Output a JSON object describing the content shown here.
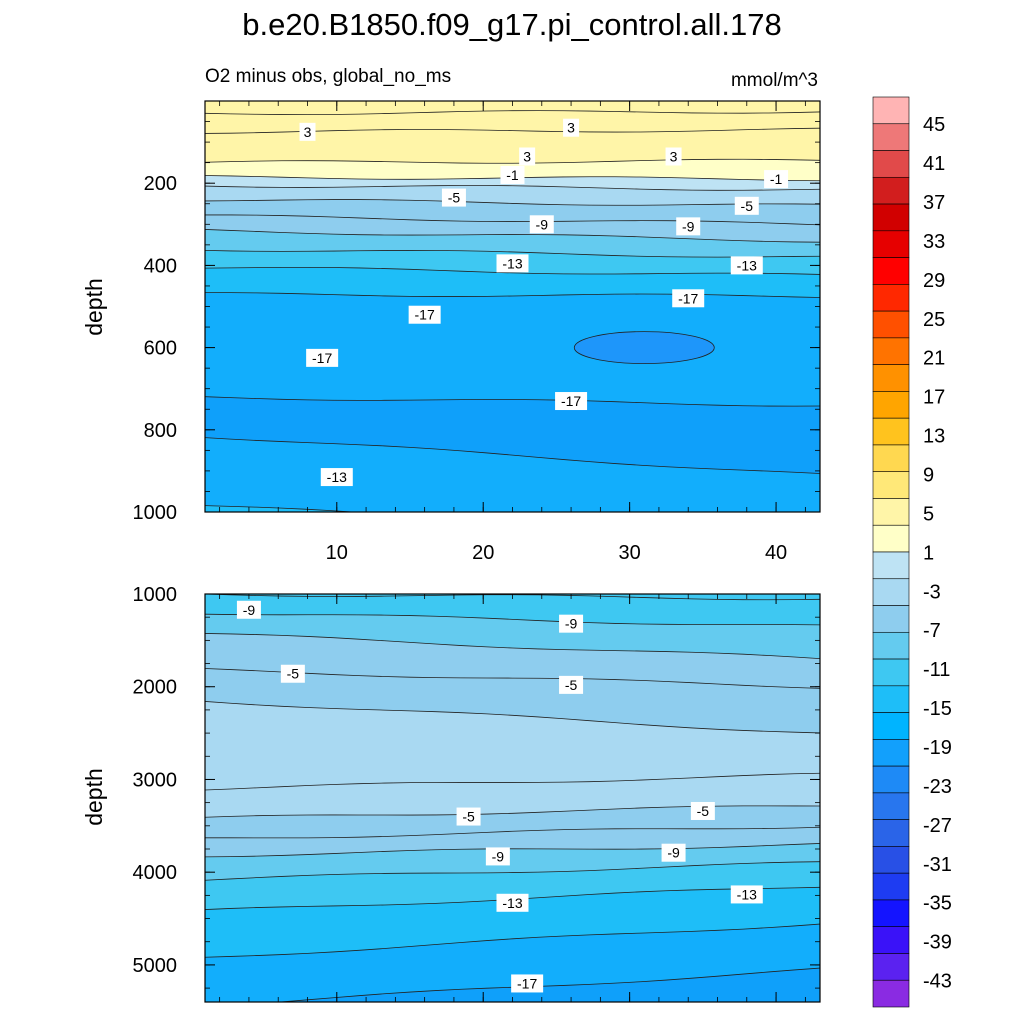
{
  "title": "b.e20.B1850.f09_g17.pi_control.all.178",
  "subtitle": "O2 minus obs, global_no_ms",
  "units": "mmol/m^3",
  "colors": {
    "levels": [
      "#8a2be2",
      "#5b22f0",
      "#3a12f8",
      "#1414ff",
      "#1e3cf2",
      "#2850e6",
      "#2a64e8",
      "#2876ee",
      "#1e8af6",
      "#12a0fc",
      "#00b4ff",
      "#1ebef8",
      "#3ec8f2",
      "#64cbef",
      "#8ecdee",
      "#a9d9f2",
      "#bee3f4",
      "#ffffc8",
      "#fff5a8",
      "#ffe878",
      "#ffd850",
      "#ffc31e",
      "#ffa500",
      "#ff9100",
      "#ff7300",
      "#ff5000",
      "#ff2800",
      "#ff0000",
      "#e60000",
      "#d10000",
      "#d21e1e",
      "#e14a4a",
      "#ee7878",
      "#ffb4b4"
    ]
  },
  "colorbar": {
    "labels": [
      "45",
      "41",
      "37",
      "33",
      "29",
      "25",
      "21",
      "17",
      "13",
      "9",
      "5",
      "1",
      "-3",
      "-7",
      "-11",
      "-15",
      "-19",
      "-23",
      "-27",
      "-31",
      "-35",
      "-39",
      "-43"
    ]
  },
  "chart_data": [
    {
      "type": "heatmap",
      "panel": "upper",
      "ylabel": "depth",
      "x_ticks": [
        "10",
        "20",
        "30",
        "40"
      ],
      "y_ticks": [
        "200",
        "400",
        "600",
        "800",
        "1000"
      ],
      "xlim": [
        1,
        43
      ],
      "ylim": [
        0,
        1000
      ],
      "y_reversed": true,
      "contour_levels_depths": [
        {
          "value": 5,
          "depth_left": 30,
          "depth_right": 25
        },
        {
          "value": 3,
          "depth_left": 75,
          "depth_right": 70
        },
        {
          "value": 1,
          "depth_left": 150,
          "depth_right": 145
        },
        {
          "value": -1,
          "depth_left": 185,
          "depth_right": 190
        },
        {
          "value": -3,
          "depth_left": 205,
          "depth_right": 215
        },
        {
          "value": -5,
          "depth_left": 240,
          "depth_right": 255
        },
        {
          "value": -7,
          "depth_left": 280,
          "depth_right": 300
        },
        {
          "value": -9,
          "depth_left": 315,
          "depth_right": 340
        },
        {
          "value": -11,
          "depth_left": 360,
          "depth_right": 380
        },
        {
          "value": -13,
          "depth_left": 405,
          "depth_right": 425
        },
        {
          "value": -15,
          "depth_left": 470,
          "depth_right": 475
        },
        {
          "value": -17,
          "depth_left": 720,
          "depth_right": 740
        },
        {
          "value": -15,
          "depth_left": 815,
          "depth_right": 910
        },
        {
          "value": -13,
          "depth_left": 985,
          "depth_right": 1060
        }
      ],
      "contour_labels": [
        {
          "text": "3",
          "x": 8,
          "depth": 75
        },
        {
          "text": "3",
          "x": 26,
          "depth": 65
        },
        {
          "text": "3",
          "x": 23,
          "depth": 135
        },
        {
          "text": "3",
          "x": 33,
          "depth": 135
        },
        {
          "text": "-1",
          "x": 22,
          "depth": 180
        },
        {
          "text": "-1",
          "x": 40,
          "depth": 190
        },
        {
          "text": "-5",
          "x": 18,
          "depth": 235
        },
        {
          "text": "-5",
          "x": 38,
          "depth": 255
        },
        {
          "text": "-9",
          "x": 24,
          "depth": 300
        },
        {
          "text": "-9",
          "x": 34,
          "depth": 305
        },
        {
          "text": "-13",
          "x": 22,
          "depth": 395
        },
        {
          "text": "-13",
          "x": 38,
          "depth": 400
        },
        {
          "text": "-17",
          "x": 34,
          "depth": 480
        },
        {
          "text": "-17",
          "x": 16,
          "depth": 520
        },
        {
          "text": "-17",
          "x": 9,
          "depth": 625
        },
        {
          "text": "-17",
          "x": 26,
          "depth": 730
        },
        {
          "text": "-13",
          "x": 10,
          "depth": 915
        }
      ]
    },
    {
      "type": "heatmap",
      "panel": "lower",
      "ylabel": "depth",
      "y_ticks": [
        "1000",
        "2000",
        "3000",
        "4000",
        "5000"
      ],
      "xlim": [
        1,
        43
      ],
      "ylim": [
        1000,
        5400
      ],
      "y_reversed": true,
      "contour_levels_depths": [
        {
          "value": -11,
          "depth_left": 1000,
          "depth_right": 1050
        },
        {
          "value": -9,
          "depth_left": 1200,
          "depth_right": 1350
        },
        {
          "value": -7,
          "depth_left": 1430,
          "depth_right": 1700
        },
        {
          "value": -5,
          "depth_left": 1820,
          "depth_right": 2000
        },
        {
          "value": -3,
          "depth_left": 2150,
          "depth_right": 2500
        },
        {
          "value": -3,
          "depth_left": 3100,
          "depth_right": 2950
        },
        {
          "value": -5,
          "depth_left": 3420,
          "depth_right": 3280
        },
        {
          "value": -7,
          "depth_left": 3640,
          "depth_right": 3500
        },
        {
          "value": -9,
          "depth_left": 3820,
          "depth_right": 3700
        },
        {
          "value": -11,
          "depth_left": 4080,
          "depth_right": 3900
        },
        {
          "value": -13,
          "depth_left": 4420,
          "depth_right": 4150
        },
        {
          "value": -15,
          "depth_left": 4920,
          "depth_right": 4550
        },
        {
          "value": -17,
          "depth_left": 5440,
          "depth_right": 5050
        }
      ],
      "contour_labels": [
        {
          "text": "-9",
          "x": 4,
          "depth": 1170
        },
        {
          "text": "-9",
          "x": 26,
          "depth": 1320
        },
        {
          "text": "-5",
          "x": 7,
          "depth": 1860
        },
        {
          "text": "-5",
          "x": 26,
          "depth": 1980
        },
        {
          "text": "-5",
          "x": 19,
          "depth": 3400
        },
        {
          "text": "-5",
          "x": 35,
          "depth": 3340
        },
        {
          "text": "-9",
          "x": 21,
          "depth": 3830
        },
        {
          "text": "-9",
          "x": 33,
          "depth": 3790
        },
        {
          "text": "-13",
          "x": 22,
          "depth": 4330
        },
        {
          "text": "-13",
          "x": 38,
          "depth": 4240
        },
        {
          "text": "-17",
          "x": 23,
          "depth": 5200
        }
      ]
    }
  ]
}
